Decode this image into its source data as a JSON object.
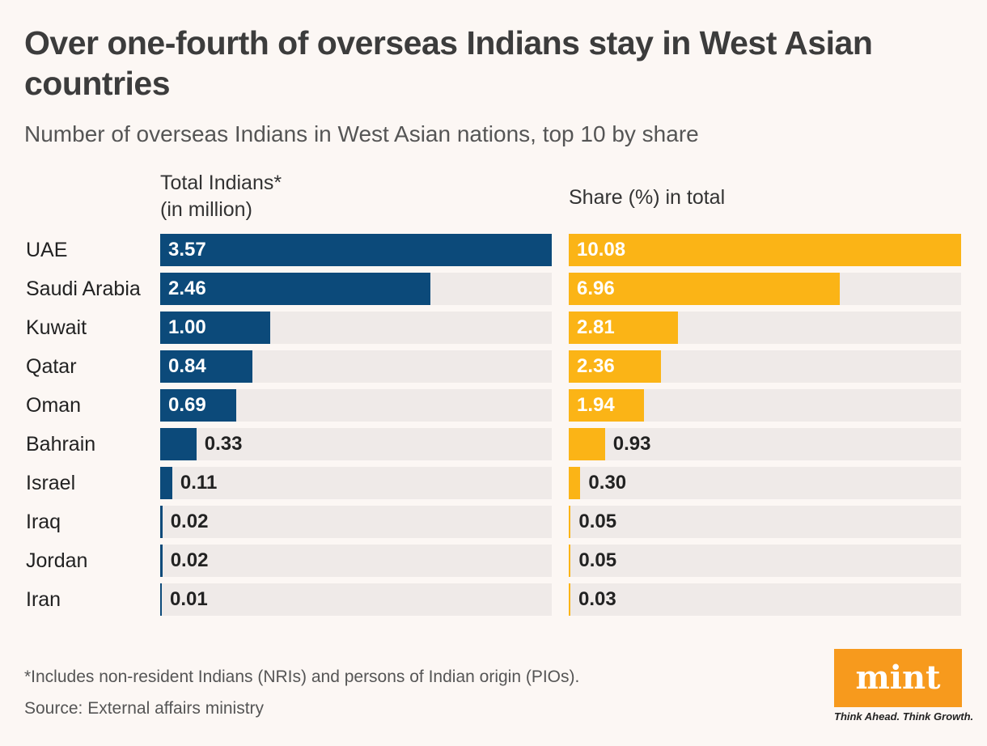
{
  "title": "Over one-fourth of overseas Indians stay in West Asian countries",
  "subtitle": "Number of overseas Indians in West Asian nations, top 10 by share",
  "colors": {
    "total_bar": "#0c4a7a",
    "share_bar": "#fbb416",
    "track": "#efeae8",
    "logo_bg": "#f79a1d"
  },
  "chart_data": [
    {
      "type": "bar",
      "orientation": "horizontal",
      "header_line1": "Total Indians*",
      "header_line2": "(in million)",
      "categories": [
        "UAE",
        "Saudi Arabia",
        "Kuwait",
        "Qatar",
        "Oman",
        "Bahrain",
        "Israel",
        "Iraq",
        "Jordan",
        "Iran"
      ],
      "values": [
        3.57,
        2.46,
        1.0,
        0.84,
        0.69,
        0.33,
        0.11,
        0.02,
        0.02,
        0.01
      ],
      "labels": [
        "3.57",
        "2.46",
        "1.00",
        "0.84",
        "0.69",
        "0.33",
        "0.11",
        "0.02",
        "0.02",
        "0.01"
      ],
      "xlim": [
        0,
        3.57
      ]
    },
    {
      "type": "bar",
      "orientation": "horizontal",
      "header": "Share (%) in total",
      "categories": [
        "UAE",
        "Saudi Arabia",
        "Kuwait",
        "Qatar",
        "Oman",
        "Bahrain",
        "Israel",
        "Iraq",
        "Jordan",
        "Iran"
      ],
      "values": [
        10.08,
        6.96,
        2.81,
        2.36,
        1.94,
        0.93,
        0.3,
        0.05,
        0.05,
        0.03
      ],
      "labels": [
        "10.08",
        "6.96",
        "2.81",
        "2.36",
        "1.94",
        "0.93",
        "0.30",
        "0.05",
        "0.05",
        "0.03"
      ],
      "xlim": [
        0,
        10.08
      ]
    }
  ],
  "footnote": "*Includes non-resident Indians (NRIs) and persons of Indian origin (PIOs).",
  "source": "Source: External affairs ministry",
  "logo": {
    "text": "mint",
    "tagline": "Think Ahead. Think Growth."
  }
}
